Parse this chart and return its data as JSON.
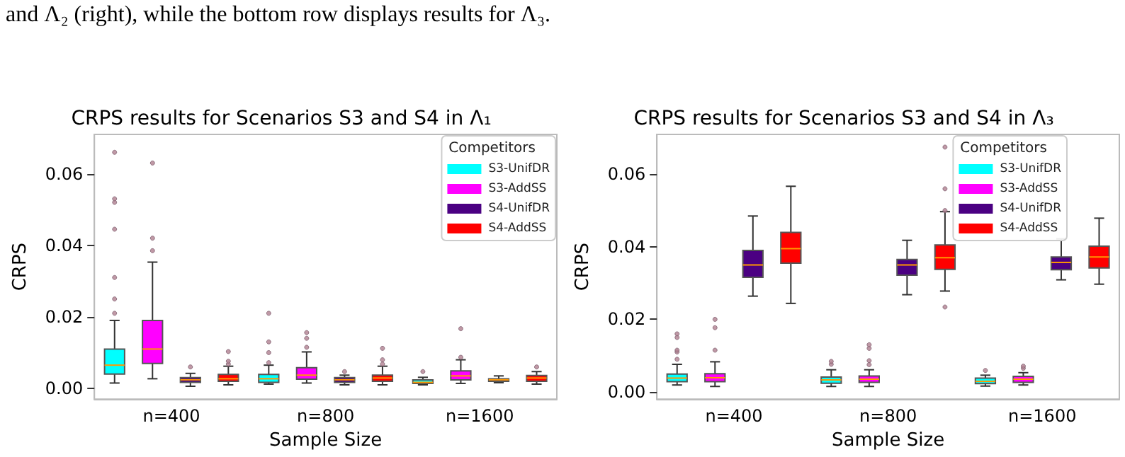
{
  "chart_data": [
    {
      "type": "box",
      "title": "CRPS results for Scenarios S3 and S4 in Λ₁",
      "xlabel": "Sample Size",
      "ylabel": "CRPS",
      "legend_title": "Competitors",
      "legend": "top right",
      "grid": false,
      "annotations": [
        "and Λ₂ (right), while the bottom row displays results for Λ₃."
      ],
      "categories": [
        "n=400",
        "n=800",
        "n=1600"
      ],
      "ylim": [
        -0.003,
        0.071
      ],
      "yticks": [
        {
          "value": 0,
          "label": "0.00"
        },
        0.02,
        0.04,
        0.06
      ],
      "series": [
        {
          "name": "S3-UnifDR",
          "color": "#00ffff",
          "boxes": [
            {
              "low": 0.0015,
              "q1": 0.004,
              "median": 0.0065,
              "q3": 0.011,
              "high": 0.019,
              "outliers": [
                0.021,
                0.025,
                0.031,
                0.0445,
                0.052,
                0.053,
                0.066
              ]
            },
            {
              "low": 0.0012,
              "q1": 0.0017,
              "median": 0.0027,
              "q3": 0.0039,
              "high": 0.0065,
              "outliers": [
                0.0072,
                0.01,
                0.013,
                0.021
              ]
            },
            {
              "low": 0.001,
              "q1": 0.0014,
              "median": 0.0017,
              "q3": 0.0024,
              "high": 0.0031,
              "outliers": [
                0.0047
              ]
            }
          ]
        },
        {
          "name": "S3-AddSS",
          "color": "#ff00ff",
          "boxes": [
            {
              "low": 0.0027,
              "q1": 0.007,
              "median": 0.011,
              "q3": 0.019,
              "high": 0.0353,
              "outliers": [
                0.0385,
                0.042,
                0.063
              ]
            },
            {
              "low": 0.0015,
              "q1": 0.0026,
              "median": 0.0037,
              "q3": 0.0058,
              "high": 0.0102,
              "outliers": [
                0.0115,
                0.014,
                0.0156
              ]
            },
            {
              "low": 0.0014,
              "q1": 0.0024,
              "median": 0.0035,
              "q3": 0.0049,
              "high": 0.008,
              "outliers": [
                0.0087,
                0.0167
              ]
            }
          ]
        },
        {
          "name": "S4-UnifDR",
          "color": "#4b0082",
          "boxes": [
            {
              "low": 0.0006,
              "q1": 0.0017,
              "median": 0.0024,
              "q3": 0.003,
              "high": 0.0042,
              "outliers": [
                0.006
              ]
            },
            {
              "low": 0.001,
              "q1": 0.0017,
              "median": 0.0024,
              "q3": 0.003,
              "high": 0.0037,
              "outliers": [
                0.0047
              ]
            },
            {
              "low": 0.0016,
              "q1": 0.002,
              "median": 0.0024,
              "q3": 0.0027,
              "high": 0.0035
            }
          ]
        },
        {
          "name": "S4-AddSS",
          "color": "#ff0000",
          "boxes": [
            {
              "low": 0.001,
              "q1": 0.002,
              "median": 0.0027,
              "q3": 0.0039,
              "high": 0.0062,
              "outliers": [
                0.0068,
                0.0076,
                0.0103
              ]
            },
            {
              "low": 0.001,
              "q1": 0.002,
              "median": 0.0029,
              "q3": 0.0037,
              "high": 0.0062,
              "outliers": [
                0.0068,
                0.008,
                0.0112
              ]
            },
            {
              "low": 0.0012,
              "q1": 0.002,
              "median": 0.0029,
              "q3": 0.0036,
              "high": 0.0047,
              "outliers": [
                0.006
              ]
            }
          ]
        }
      ]
    },
    {
      "type": "box",
      "title": "CRPS results for Scenarios S3 and S4 in Λ₃",
      "xlabel": "Sample Size",
      "ylabel": "CRPS",
      "legend_title": "Competitors",
      "legend": "top right",
      "grid": false,
      "categories": [
        "n=400",
        "n=800",
        "n=1600"
      ],
      "ylim": [
        -0.002,
        0.071
      ],
      "yticks": [
        {
          "value": 0,
          "label": "0.00"
        },
        0.02,
        0.04,
        0.06
      ],
      "series": [
        {
          "name": "S3-UnifDR",
          "color": "#00ffff",
          "boxes": [
            {
              "low": 0.0019,
              "q1": 0.0028,
              "median": 0.0038,
              "q3": 0.0049,
              "high": 0.0076,
              "outliers": [
                0.009,
                0.011,
                0.0115,
                0.015,
                0.016
              ]
            },
            {
              "low": 0.0015,
              "q1": 0.0024,
              "median": 0.0033,
              "q3": 0.0041,
              "high": 0.0061,
              "outliers": [
                0.0076,
                0.0084
              ]
            },
            {
              "low": 0.0016,
              "q1": 0.0023,
              "median": 0.0029,
              "q3": 0.0038,
              "high": 0.0046,
              "outliers": [
                0.0059
              ]
            }
          ]
        },
        {
          "name": "S3-AddSS",
          "color": "#ff00ff",
          "boxes": [
            {
              "low": 0.0015,
              "q1": 0.0028,
              "median": 0.0039,
              "q3": 0.005,
              "high": 0.0083,
              "outliers": [
                0.0115,
                0.0177,
                0.02
              ]
            },
            {
              "low": 0.0015,
              "q1": 0.0026,
              "median": 0.0035,
              "q3": 0.0044,
              "high": 0.0061,
              "outliers": [
                0.0075,
                0.0086,
                0.012,
                0.013
              ]
            },
            {
              "low": 0.0019,
              "q1": 0.0026,
              "median": 0.0035,
              "q3": 0.0043,
              "high": 0.0053,
              "outliers": [
                0.0065,
                0.0071
              ]
            }
          ]
        },
        {
          "name": "S4-UnifDR",
          "color": "#4b0082",
          "boxes": [
            {
              "low": 0.0264,
              "q1": 0.0316,
              "median": 0.035,
              "q3": 0.039,
              "high": 0.0485
            },
            {
              "low": 0.0268,
              "q1": 0.0322,
              "median": 0.035,
              "q3": 0.0365,
              "high": 0.0418
            },
            {
              "low": 0.0309,
              "q1": 0.0337,
              "median": 0.0357,
              "q3": 0.0372,
              "high": 0.0422
            }
          ]
        },
        {
          "name": "S4-AddSS",
          "color": "#ff0000",
          "boxes": [
            {
              "low": 0.0244,
              "q1": 0.0355,
              "median": 0.0395,
              "q3": 0.044,
              "high": 0.0567
            },
            {
              "low": 0.0278,
              "q1": 0.0338,
              "median": 0.037,
              "q3": 0.0405,
              "high": 0.0497,
              "outliers": [
                0.0234,
                0.05,
                0.056,
                0.0675
              ]
            },
            {
              "low": 0.0297,
              "q1": 0.0342,
              "median": 0.0372,
              "q3": 0.0402,
              "high": 0.0479
            }
          ]
        }
      ]
    }
  ]
}
